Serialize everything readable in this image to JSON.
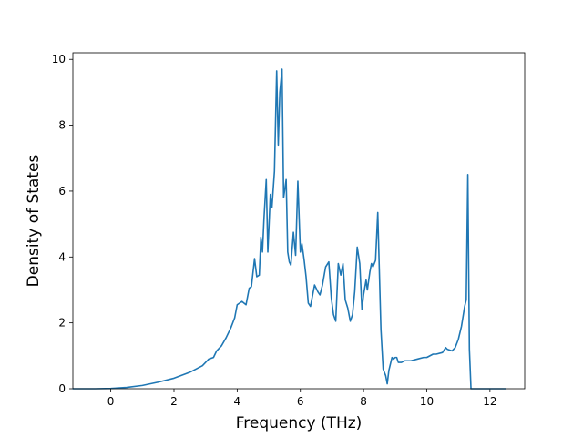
{
  "chart_data": {
    "type": "line",
    "title": "",
    "xlabel": "Frequency (THz)",
    "ylabel": "Density of States",
    "xlim": [
      -1.2,
      13.1
    ],
    "ylim": [
      0,
      10.2
    ],
    "xticks": [
      0,
      2,
      4,
      6,
      8,
      10,
      12
    ],
    "yticks": [
      0,
      2,
      4,
      6,
      8,
      10
    ],
    "grid": false,
    "legend": "none",
    "line_color": "#1f77b4",
    "series": [
      {
        "x": [
          -1.2,
          -0.5,
          0,
          0.5,
          1.0,
          1.5,
          2.0,
          2.5,
          2.9,
          3.0,
          3.1,
          3.25,
          3.35,
          3.5,
          3.65,
          3.8,
          3.92,
          4.0,
          4.15,
          4.28,
          4.38,
          4.45,
          4.55,
          4.62,
          4.7,
          4.75,
          4.8,
          4.85,
          4.92,
          4.97,
          5.05,
          5.1,
          5.18,
          5.25,
          5.3,
          5.35,
          5.42,
          5.47,
          5.55,
          5.6,
          5.65,
          5.7,
          5.78,
          5.85,
          5.92,
          6.0,
          6.05,
          6.12,
          6.18,
          6.25,
          6.32,
          6.38,
          6.45,
          6.55,
          6.62,
          6.7,
          6.8,
          6.9,
          6.98,
          7.05,
          7.12,
          7.2,
          7.28,
          7.35,
          7.42,
          7.5,
          7.58,
          7.65,
          7.72,
          7.8,
          7.88,
          7.95,
          8.0,
          8.08,
          8.12,
          8.2,
          8.25,
          8.3,
          8.38,
          8.45,
          8.55,
          8.62,
          8.7,
          8.75,
          8.8,
          8.9,
          8.95,
          9.0,
          9.05,
          9.1,
          9.2,
          9.3,
          9.5,
          9.7,
          9.9,
          10.0,
          10.2,
          10.3,
          10.5,
          10.6,
          10.65,
          10.8,
          10.9,
          11.0,
          11.1,
          11.2,
          11.25,
          11.3,
          11.35,
          11.4,
          11.45,
          11.8,
          12.5
        ],
        "y": [
          0,
          0,
          0.01,
          0.04,
          0.1,
          0.2,
          0.32,
          0.5,
          0.7,
          0.8,
          0.9,
          0.95,
          1.15,
          1.3,
          1.55,
          1.85,
          2.15,
          2.55,
          2.65,
          2.55,
          3.05,
          3.1,
          3.95,
          3.4,
          3.45,
          4.6,
          4.15,
          5.2,
          6.35,
          4.15,
          5.9,
          5.5,
          6.6,
          9.65,
          7.4,
          9.0,
          9.7,
          5.8,
          6.35,
          4.15,
          3.85,
          3.75,
          4.75,
          4.05,
          6.3,
          4.15,
          4.4,
          3.9,
          3.4,
          2.6,
          2.5,
          2.8,
          3.15,
          2.95,
          2.85,
          3.15,
          3.7,
          3.85,
          2.75,
          2.25,
          2.05,
          3.8,
          3.45,
          3.8,
          2.7,
          2.45,
          2.05,
          2.25,
          2.95,
          4.3,
          3.8,
          2.4,
          2.85,
          3.3,
          3.0,
          3.55,
          3.8,
          3.7,
          3.9,
          5.35,
          1.8,
          0.6,
          0.4,
          0.15,
          0.55,
          0.95,
          0.9,
          0.95,
          0.95,
          0.8,
          0.8,
          0.85,
          0.85,
          0.9,
          0.95,
          0.95,
          1.05,
          1.05,
          1.1,
          1.25,
          1.2,
          1.15,
          1.25,
          1.5,
          1.9,
          2.5,
          2.7,
          6.5,
          1.2,
          0.0,
          0.0,
          0.0,
          0.0
        ]
      }
    ]
  }
}
